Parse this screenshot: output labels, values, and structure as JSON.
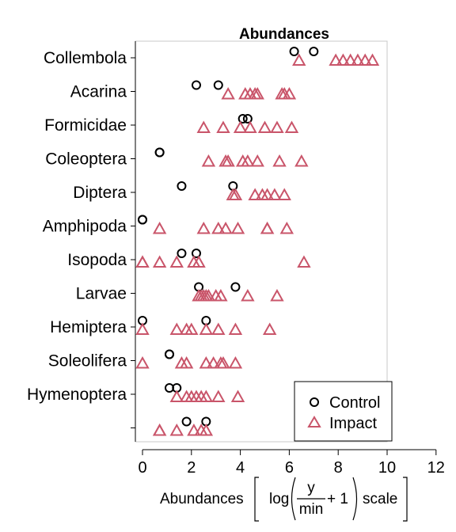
{
  "chart_data": {
    "type": "scatter",
    "title": "Abundances",
    "xlabel": {
      "prefix": "Abundances",
      "log": "log",
      "numerator": "y",
      "denominator": "min",
      "plus_one": "+ 1",
      "suffix": "scale"
    },
    "xlim": [
      0,
      12
    ],
    "xticks": [
      0,
      2,
      4,
      6,
      8,
      10,
      12
    ],
    "grid": false,
    "legend_position": "bottom-right",
    "categories": [
      "Collembola",
      "Acarina",
      "Formicidae",
      "Coleoptera",
      "Diptera",
      "Amphipoda",
      "Isopoda",
      "Larvae",
      "Hemiptera",
      "Soleolifera",
      "Hymenoptera",
      ""
    ],
    "series": [
      {
        "name": "Control",
        "marker": "circle",
        "color": "#000000",
        "points": [
          {
            "category": 0,
            "values": [
              6.2,
              7.0
            ]
          },
          {
            "category": 1,
            "values": [
              2.2,
              3.1
            ]
          },
          {
            "category": 2,
            "values": [
              4.1,
              4.3
            ]
          },
          {
            "category": 3,
            "values": [
              0.7,
              0.7
            ]
          },
          {
            "category": 4,
            "values": [
              1.6,
              3.7
            ]
          },
          {
            "category": 5,
            "values": [
              0.0,
              0.0
            ]
          },
          {
            "category": 6,
            "values": [
              1.6,
              2.2
            ]
          },
          {
            "category": 7,
            "values": [
              2.3,
              3.8
            ]
          },
          {
            "category": 8,
            "values": [
              0.0,
              2.6
            ]
          },
          {
            "category": 9,
            "values": [
              1.1,
              1.1
            ]
          },
          {
            "category": 10,
            "values": [
              1.1,
              1.4
            ]
          },
          {
            "category": 11,
            "values": [
              1.8,
              2.6
            ]
          }
        ]
      },
      {
        "name": "Impact",
        "marker": "triangle",
        "color": "#C9556A",
        "points": [
          {
            "category": 0,
            "values": [
              6.4,
              7.9,
              8.2,
              8.5,
              8.8,
              9.1,
              9.4
            ]
          },
          {
            "category": 1,
            "values": [
              3.5,
              4.2,
              4.4,
              4.6,
              4.7,
              5.7,
              5.8,
              6.0
            ]
          },
          {
            "category": 2,
            "values": [
              2.5,
              3.3,
              4.0,
              4.4,
              5.0,
              5.5,
              6.1
            ]
          },
          {
            "category": 3,
            "values": [
              2.7,
              3.4,
              3.5,
              4.1,
              4.3,
              4.7,
              5.6,
              6.5
            ]
          },
          {
            "category": 4,
            "values": [
              3.7,
              3.8,
              4.6,
              4.9,
              5.1,
              5.4,
              5.8
            ]
          },
          {
            "category": 5,
            "values": [
              0.7,
              2.5,
              3.1,
              3.4,
              3.9,
              5.1,
              5.1,
              5.9
            ]
          },
          {
            "category": 6,
            "values": [
              0.0,
              0.0,
              0.7,
              1.4,
              2.1,
              2.3,
              6.6
            ]
          },
          {
            "category": 7,
            "values": [
              2.3,
              2.4,
              2.5,
              2.6,
              2.7,
              3.0,
              3.2,
              4.3,
              5.5
            ]
          },
          {
            "category": 8,
            "values": [
              0.0,
              1.4,
              1.8,
              2.0,
              2.6,
              3.1,
              3.8,
              5.2
            ]
          },
          {
            "category": 9,
            "values": [
              0.0,
              1.6,
              1.8,
              2.6,
              2.9,
              3.2,
              3.3,
              3.8
            ]
          },
          {
            "category": 10,
            "values": [
              1.4,
              1.8,
              2.0,
              2.2,
              2.4,
              2.6,
              3.1,
              3.9
            ]
          },
          {
            "category": 11,
            "values": [
              0.7,
              0.7,
              1.4,
              2.1,
              2.4,
              2.6
            ]
          }
        ]
      }
    ]
  }
}
